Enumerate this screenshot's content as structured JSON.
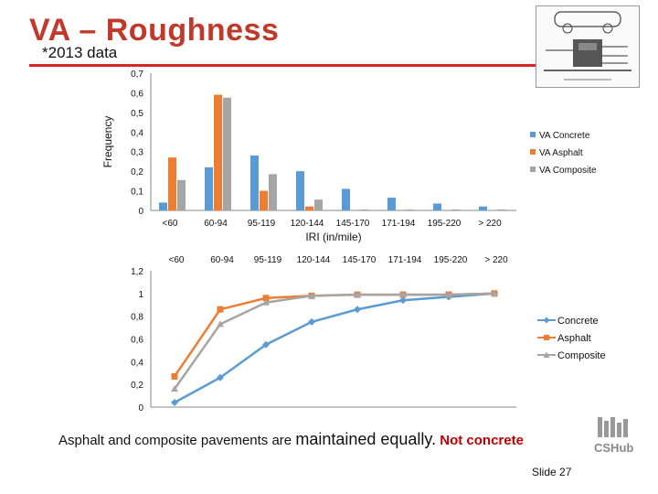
{
  "header": {
    "title": "VA – Roughness",
    "subtitle": "*2013 data"
  },
  "logo": {
    "text": "CSHub",
    "icon": "cshub-logo-icon"
  },
  "footer": {
    "text_part1": "Asphalt and composite pavements are ",
    "text_part2": "maintained equally.",
    "text_part3": " Not concrete"
  },
  "slide_label": "Slide 27",
  "colors": {
    "concrete": "#5b9bd5",
    "asphalt": "#ed7d31",
    "composite": "#a5a5a5",
    "title": "#c0392b",
    "rule": "#d62728"
  },
  "chart_data": [
    {
      "type": "bar",
      "categories": [
        "<60",
        "60-94",
        "95-119",
        "120-144",
        "145-170",
        "171-194",
        "195-220",
        "> 220"
      ],
      "series": [
        {
          "name": "VA Concrete",
          "values": [
            0.04,
            0.22,
            0.28,
            0.2,
            0.11,
            0.065,
            0.035,
            0.02
          ]
        },
        {
          "name": "VA Asphalt",
          "values": [
            0.27,
            0.59,
            0.1,
            0.02,
            0.0,
            0.0,
            0.0,
            0.0
          ]
        },
        {
          "name": "VA Composite",
          "values": [
            0.155,
            0.575,
            0.185,
            0.055,
            0.005,
            0.005,
            0.005,
            0.005
          ]
        }
      ],
      "xlabel": "IRI (in/mile)",
      "ylabel": "Frequency",
      "ylim": [
        0,
        0.7
      ],
      "yticks": [
        "0",
        "0,1",
        "0,2",
        "0,3",
        "0,4",
        "0,5",
        "0,6",
        "0,7"
      ],
      "legend": "right"
    },
    {
      "type": "line",
      "categories": [
        "<60",
        "60-94",
        "95-119",
        "120-144",
        "145-170",
        "171-194",
        "195-220",
        "> 220"
      ],
      "series": [
        {
          "name": "Concrete",
          "values": [
            0.04,
            0.26,
            0.55,
            0.75,
            0.86,
            0.94,
            0.97,
            1.0
          ]
        },
        {
          "name": "Asphalt",
          "values": [
            0.27,
            0.86,
            0.96,
            0.98,
            0.99,
            0.99,
            0.99,
            1.0
          ]
        },
        {
          "name": "Composite",
          "values": [
            0.16,
            0.73,
            0.92,
            0.98,
            0.99,
            0.99,
            0.99,
            1.0
          ]
        }
      ],
      "ylim": [
        0,
        1.2
      ],
      "yticks": [
        "0",
        "0,2",
        "0,4",
        "0,6",
        "0,8",
        "1",
        "1,2"
      ],
      "legend": "right"
    }
  ]
}
